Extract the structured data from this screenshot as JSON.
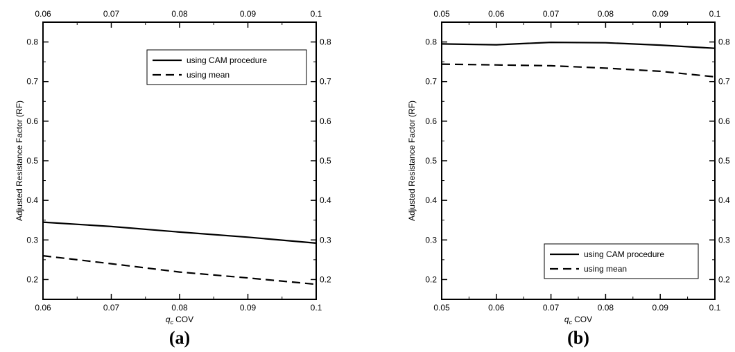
{
  "chart_data": [
    {
      "type": "line",
      "panel_label": "(a)",
      "xlabel": "COV",
      "xlabel_symbol": "q",
      "xlabel_subscript": "c",
      "ylabel": "Adjusted Resistance Factor (RF)",
      "xlim": [
        0.06,
        0.1
      ],
      "ylim": [
        0.15,
        0.85
      ],
      "xticks": [
        0.06,
        0.07,
        0.08,
        0.09,
        0.1
      ],
      "xtick_labels": [
        "0.06",
        "0.07",
        "0.08",
        "0.09",
        "0.1"
      ],
      "yticks": [
        0.2,
        0.3,
        0.4,
        0.5,
        0.6,
        0.7,
        0.8
      ],
      "ytick_labels": [
        "0.2",
        "0.3",
        "0.4",
        "0.5",
        "0.6",
        "0.7",
        "0.8"
      ],
      "mirror_ticks": true,
      "grid": false,
      "legend_position": "top-right",
      "series": [
        {
          "name": "using CAM procedure",
          "style": "solid",
          "x": [
            0.06,
            0.07,
            0.08,
            0.09,
            0.1
          ],
          "values": [
            0.345,
            0.334,
            0.32,
            0.307,
            0.292
          ]
        },
        {
          "name": "using mean",
          "style": "dashed",
          "x": [
            0.06,
            0.07,
            0.08,
            0.09,
            0.1
          ],
          "values": [
            0.26,
            0.24,
            0.219,
            0.204,
            0.188
          ]
        }
      ]
    },
    {
      "type": "line",
      "panel_label": "(b)",
      "xlabel": "COV",
      "xlabel_symbol": "q",
      "xlabel_subscript": "c",
      "ylabel": "Adjusted Resistance Factor (RF)",
      "xlim": [
        0.05,
        0.1
      ],
      "ylim": [
        0.15,
        0.85
      ],
      "xticks": [
        0.05,
        0.06,
        0.07,
        0.08,
        0.09,
        0.1
      ],
      "xtick_labels": [
        "0.05",
        "0.06",
        "0.07",
        "0.08",
        "0.09",
        "0.1"
      ],
      "yticks": [
        0.2,
        0.3,
        0.4,
        0.5,
        0.6,
        0.7,
        0.8
      ],
      "ytick_labels": [
        "0.2",
        "0.3",
        "0.4",
        "0.5",
        "0.6",
        "0.7",
        "0.8"
      ],
      "mirror_ticks": true,
      "grid": false,
      "legend_position": "bottom-right",
      "series": [
        {
          "name": "using CAM procedure",
          "style": "solid",
          "x": [
            0.05,
            0.06,
            0.07,
            0.08,
            0.09,
            0.1
          ],
          "values": [
            0.795,
            0.793,
            0.799,
            0.798,
            0.792,
            0.784
          ]
        },
        {
          "name": "using mean",
          "style": "dashed",
          "x": [
            0.05,
            0.06,
            0.07,
            0.08,
            0.09,
            0.1
          ],
          "values": [
            0.744,
            0.742,
            0.74,
            0.734,
            0.726,
            0.712
          ]
        }
      ]
    }
  ]
}
